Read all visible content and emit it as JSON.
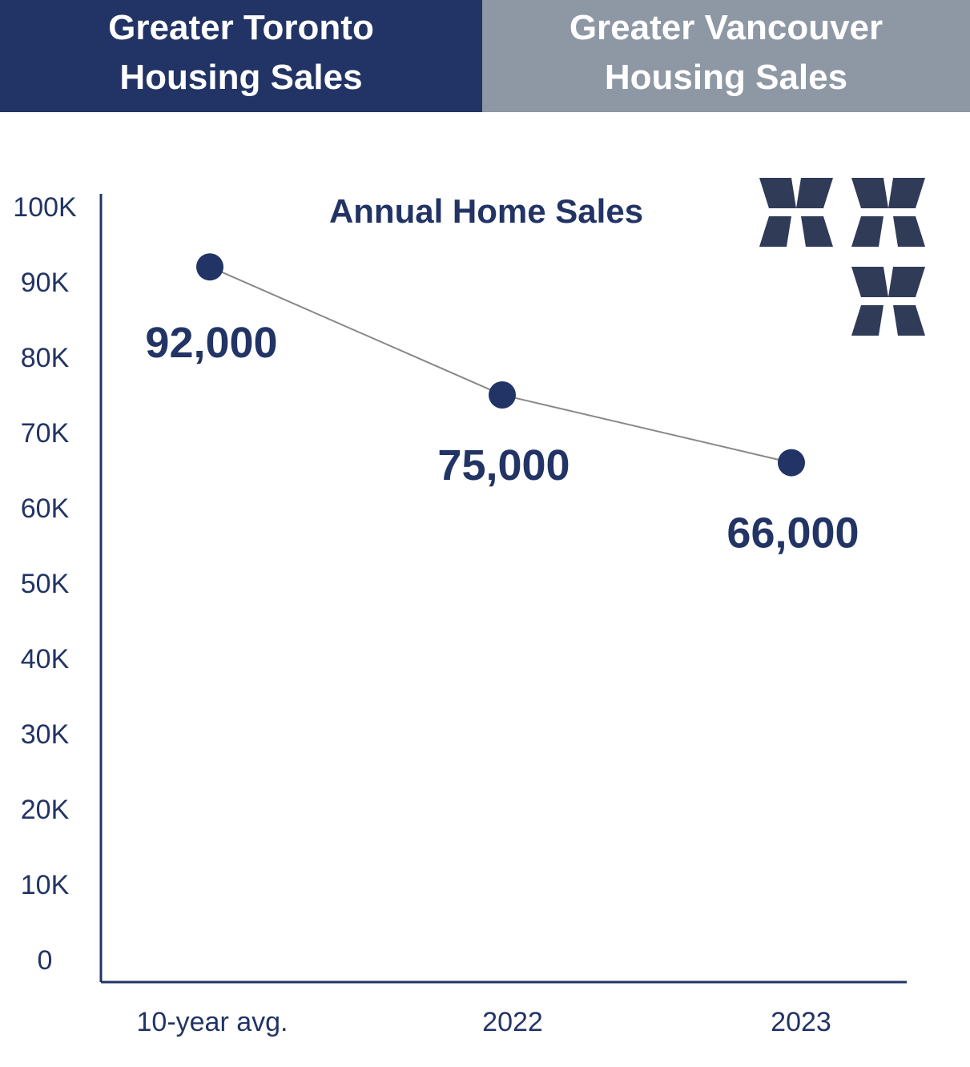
{
  "tabs": [
    {
      "label": "Greater Toronto\nHousing Sales",
      "active": true
    },
    {
      "label": "Greater Vancouver\nHousing Sales",
      "active": false
    }
  ],
  "colors": {
    "active_tab": "#223465",
    "inactive_tab": "#8e98a4",
    "accent": "#223465",
    "line": "#888888",
    "logo": "#2f3b57"
  },
  "logo": {
    "icon": "xx-x-logo-icon"
  },
  "chart_data": {
    "type": "line",
    "title": "Annual Home Sales",
    "categories": [
      "10-year avg.",
      "2022",
      "2023"
    ],
    "values": [
      92000,
      75000,
      66000
    ],
    "data_labels": [
      "92,000",
      "75,000",
      "66,000"
    ],
    "ylim": [
      0,
      100000
    ],
    "yticks": [
      0,
      10000,
      20000,
      30000,
      40000,
      50000,
      60000,
      70000,
      80000,
      90000,
      100000
    ],
    "ytick_labels": [
      "0",
      "10K",
      "20K",
      "30K",
      "40K",
      "50K",
      "60K",
      "70K",
      "80K",
      "90K",
      "100K"
    ],
    "grid": false,
    "xlabel": "",
    "ylabel": ""
  }
}
